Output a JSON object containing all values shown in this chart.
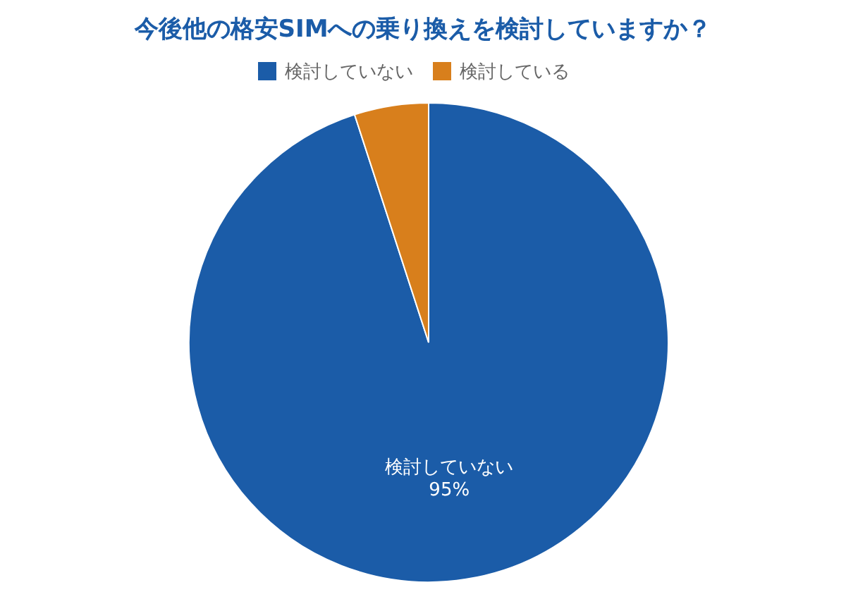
{
  "chart_data": {
    "type": "pie",
    "title": "今後他の格安SIMへの乗り換えを検討していますか？",
    "categories": [
      "検討していない",
      "検討している"
    ],
    "values": [
      95,
      5
    ],
    "colors": [
      "#1b5ca8",
      "#d87f1c"
    ],
    "value_labels": [
      "95%",
      null
    ],
    "legend": "top"
  }
}
